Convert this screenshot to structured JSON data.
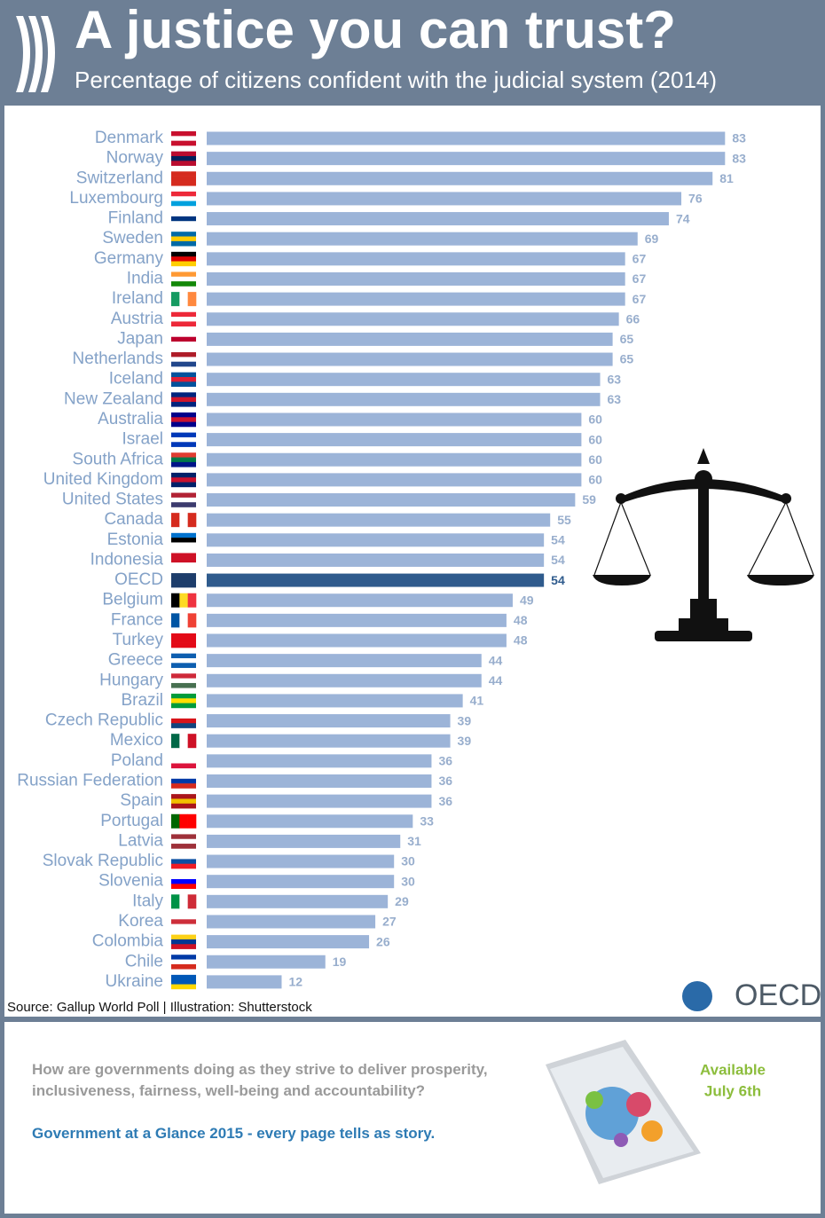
{
  "header": {
    "title": "A justice you can trust?",
    "subtitle": "Percentage of citizens confident with the judicial system (2014)"
  },
  "chart_data": {
    "type": "bar",
    "orientation": "horizontal",
    "categories": [
      "Denmark",
      "Norway",
      "Switzerland",
      "Luxembourg",
      "Finland",
      "Sweden",
      "Germany",
      "India",
      "Ireland",
      "Austria",
      "Japan",
      "Netherlands",
      "Iceland",
      "New Zealand",
      "Australia",
      "Israel",
      "South Africa",
      "United Kingdom",
      "United States",
      "Canada",
      "Estonia",
      "Indonesia",
      "OECD",
      "Belgium",
      "France",
      "Turkey",
      "Greece",
      "Hungary",
      "Brazil",
      "Czech Republic",
      "Mexico",
      "Poland",
      "Russian Federation",
      "Spain",
      "Portugal",
      "Latvia",
      "Slovak Republic",
      "Slovenia",
      "Italy",
      "Korea",
      "Colombia",
      "Chile",
      "Ukraine"
    ],
    "values": [
      83,
      83,
      81,
      76,
      74,
      69,
      67,
      67,
      67,
      66,
      65,
      65,
      63,
      63,
      60,
      60,
      60,
      60,
      59,
      55,
      54,
      54,
      54,
      49,
      48,
      48,
      44,
      44,
      41,
      39,
      39,
      36,
      36,
      36,
      33,
      31,
      30,
      30,
      29,
      27,
      26,
      19,
      12
    ],
    "color": "#9cb4d8",
    "highlight_color": "#2f5b8d",
    "highlight": [
      false,
      false,
      false,
      false,
      false,
      false,
      false,
      false,
      false,
      false,
      false,
      false,
      false,
      false,
      false,
      false,
      false,
      false,
      false,
      false,
      false,
      false,
      true,
      false,
      false,
      false,
      false,
      false,
      false,
      false,
      false,
      false,
      false,
      false,
      false,
      false,
      false,
      false,
      false,
      false,
      false,
      false,
      false
    ],
    "source": "Source: Gallup World Poll | Illustration: Shutterstock"
  },
  "footer": {
    "question": "How are governments doing as they strive to deliver prosperity, inclusiveness, fairness, well-being and accountability?",
    "tagline": "Government at a Glance 2015 - every page tells as story.",
    "available": "Available",
    "date": "July 6th",
    "logo": "OECD"
  }
}
